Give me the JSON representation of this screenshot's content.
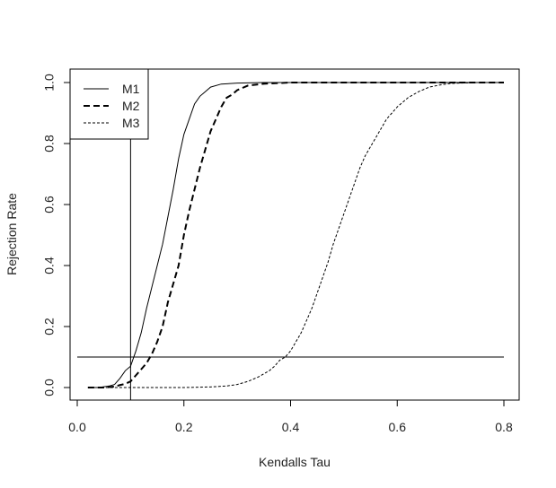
{
  "chart_data": {
    "type": "line",
    "title": "",
    "xlabel": "Kendalls Tau",
    "ylabel": "Rejection Rate",
    "xlim": [
      0.0,
      0.8
    ],
    "ylim": [
      0.0,
      1.0
    ],
    "xticks": [
      "0.0",
      "0.2",
      "0.4",
      "0.6",
      "0.8"
    ],
    "yticks": [
      "0.0",
      "0.2",
      "0.4",
      "0.6",
      "0.8",
      "1.0"
    ],
    "grid": false,
    "legend_position": "top-left",
    "reference_lines": {
      "horizontal_y": 0.1,
      "vertical_x": 0.1
    },
    "series": [
      {
        "name": "M1",
        "line_style": "solid",
        "color": "#000000",
        "x": [
          0.02,
          0.04,
          0.06,
          0.07,
          0.08,
          0.09,
          0.1,
          0.11,
          0.12,
          0.13,
          0.14,
          0.15,
          0.16,
          0.17,
          0.18,
          0.19,
          0.2,
          0.21,
          0.22,
          0.23,
          0.24,
          0.25,
          0.27,
          0.3,
          0.35,
          0.4,
          0.5,
          0.6,
          0.7,
          0.8
        ],
        "y": [
          0.0,
          0.0,
          0.005,
          0.01,
          0.03,
          0.055,
          0.07,
          0.12,
          0.18,
          0.26,
          0.33,
          0.4,
          0.47,
          0.56,
          0.65,
          0.75,
          0.83,
          0.88,
          0.93,
          0.955,
          0.97,
          0.985,
          0.995,
          0.998,
          1.0,
          1.0,
          1.0,
          1.0,
          1.0,
          1.0
        ]
      },
      {
        "name": "M2",
        "line_style": "dashed",
        "color": "#000000",
        "x": [
          0.02,
          0.05,
          0.07,
          0.08,
          0.09,
          0.1,
          0.11,
          0.12,
          0.13,
          0.14,
          0.15,
          0.16,
          0.17,
          0.18,
          0.19,
          0.2,
          0.21,
          0.22,
          0.23,
          0.24,
          0.25,
          0.26,
          0.27,
          0.28,
          0.29,
          0.3,
          0.32,
          0.35,
          0.4,
          0.5,
          0.6,
          0.7,
          0.8
        ],
        "y": [
          0.0,
          0.0,
          0.003,
          0.008,
          0.012,
          0.02,
          0.04,
          0.06,
          0.08,
          0.11,
          0.15,
          0.2,
          0.28,
          0.34,
          0.4,
          0.5,
          0.58,
          0.65,
          0.72,
          0.78,
          0.84,
          0.88,
          0.92,
          0.95,
          0.96,
          0.975,
          0.99,
          0.996,
          1.0,
          1.0,
          1.0,
          1.0,
          1.0
        ]
      },
      {
        "name": "M3",
        "line_style": "dotted",
        "color": "#000000",
        "x": [
          0.02,
          0.1,
          0.2,
          0.25,
          0.28,
          0.3,
          0.32,
          0.34,
          0.36,
          0.37,
          0.38,
          0.39,
          0.4,
          0.41,
          0.42,
          0.43,
          0.44,
          0.45,
          0.46,
          0.47,
          0.48,
          0.49,
          0.5,
          0.51,
          0.52,
          0.53,
          0.54,
          0.55,
          0.56,
          0.57,
          0.58,
          0.59,
          0.6,
          0.62,
          0.64,
          0.66,
          0.68,
          0.7,
          0.75,
          0.8
        ],
        "y": [
          0.0,
          0.0,
          0.0,
          0.002,
          0.005,
          0.01,
          0.02,
          0.035,
          0.055,
          0.07,
          0.09,
          0.1,
          0.12,
          0.15,
          0.18,
          0.22,
          0.26,
          0.31,
          0.36,
          0.41,
          0.47,
          0.52,
          0.57,
          0.62,
          0.67,
          0.72,
          0.76,
          0.79,
          0.82,
          0.85,
          0.88,
          0.9,
          0.92,
          0.95,
          0.97,
          0.985,
          0.992,
          0.997,
          1.0,
          1.0
        ]
      }
    ]
  }
}
